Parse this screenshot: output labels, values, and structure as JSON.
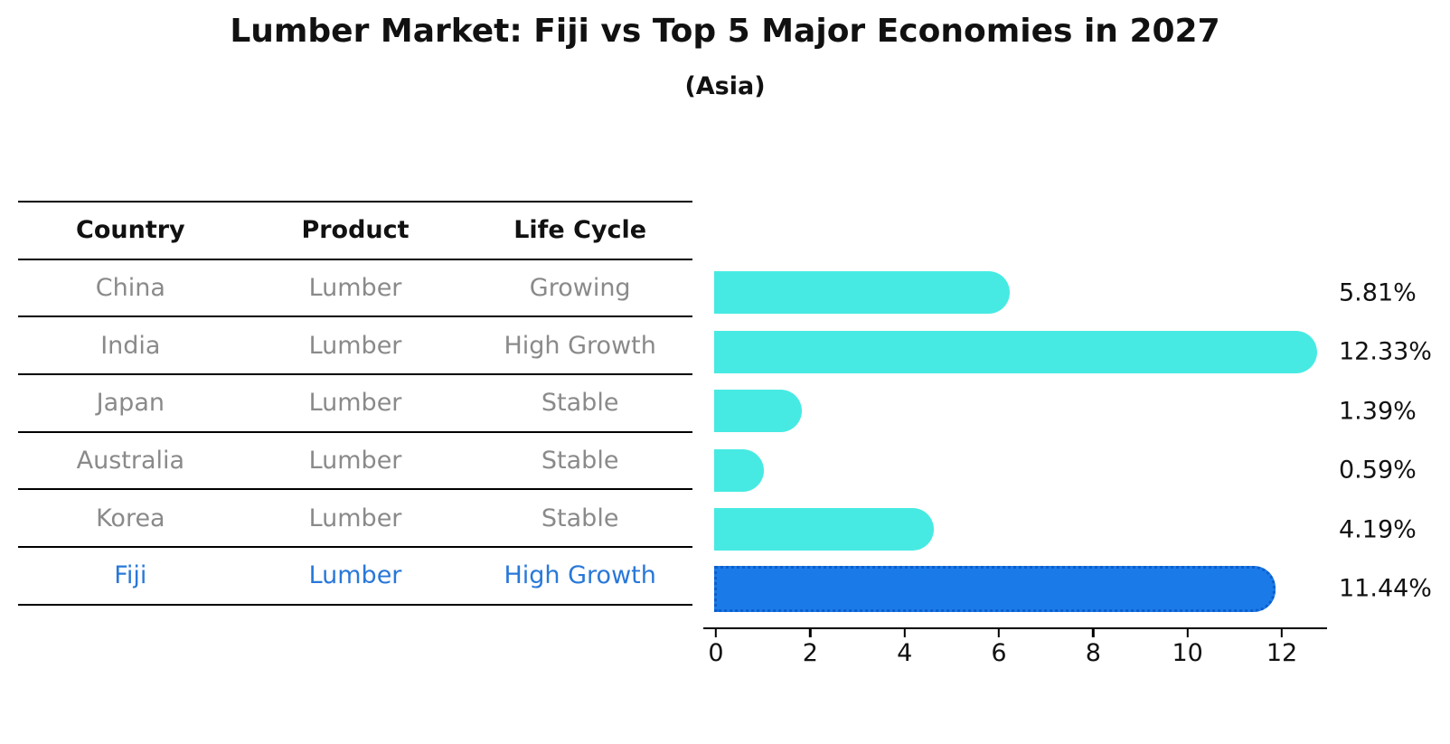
{
  "title": "Lumber Market: Fiji vs Top 5 Major Economies in 2027",
  "subtitle": "(Asia)",
  "table": {
    "headers": [
      "Country",
      "Product",
      "Life Cycle"
    ],
    "rows": [
      {
        "country": "China",
        "product": "Lumber",
        "life_cycle": "Growing",
        "highlight": false
      },
      {
        "country": "India",
        "product": "Lumber",
        "life_cycle": "High Growth",
        "highlight": false
      },
      {
        "country": "Japan",
        "product": "Lumber",
        "life_cycle": "Stable",
        "highlight": false
      },
      {
        "country": "Australia",
        "product": "Lumber",
        "life_cycle": "Stable",
        "highlight": false
      },
      {
        "country": "Korea",
        "product": "Lumber",
        "life_cycle": "Stable",
        "highlight": false
      },
      {
        "country": "Fiji",
        "product": "Lumber",
        "life_cycle": "High Growth",
        "highlight": true
      }
    ]
  },
  "chart_data": {
    "type": "bar",
    "orientation": "horizontal",
    "title": "Lumber Market: Fiji vs Top 5 Major Economies in 2027",
    "subtitle": "(Asia)",
    "categories": [
      "China",
      "India",
      "Japan",
      "Australia",
      "Korea",
      "Fiji"
    ],
    "values": [
      5.81,
      12.33,
      1.39,
      0.59,
      4.19,
      11.44
    ],
    "value_labels": [
      "5.81%",
      "12.33%",
      "1.39%",
      "0.59%",
      "4.19%",
      "11.44%"
    ],
    "x_ticks": [
      0,
      2,
      4,
      6,
      8,
      10,
      12
    ],
    "xlim": [
      0,
      13.2
    ],
    "xlabel": "",
    "ylabel": "",
    "grid": false,
    "legend": false,
    "highlight_index": 5,
    "bar_color": "#47eae2",
    "highlight_bar_color": "#1a7be8",
    "highlight_border_color": "#0d5ecc",
    "highlight_border_style": "dotted"
  },
  "colors": {
    "text": "#111111",
    "muted_text": "#8a8a8a",
    "highlight_text": "#2878d8",
    "line": "#000000",
    "background": "#ffffff"
  }
}
